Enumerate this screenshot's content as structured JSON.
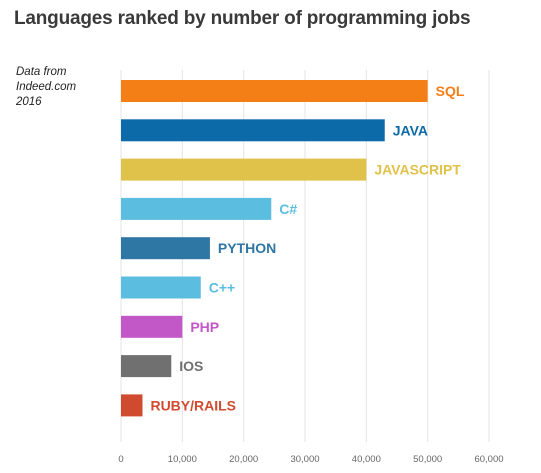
{
  "title": "Languages ranked by number of programming jobs",
  "source_note": [
    "Data from",
    "Indeed.com",
    "2016"
  ],
  "chart_data": {
    "type": "bar",
    "orientation": "horizontal",
    "title": "Languages ranked by number of programming jobs",
    "xlabel": "",
    "ylabel": "",
    "xlim": [
      0,
      60000
    ],
    "x_ticks": [
      0,
      10000,
      20000,
      30000,
      40000,
      50000,
      60000
    ],
    "x_tick_labels": [
      "0",
      "10,000",
      "20,000",
      "30,000",
      "40,000",
      "50,000",
      "60,000"
    ],
    "grid": true,
    "legend": "none",
    "categories": [
      "SQL",
      "JAVA",
      "JAVASCRIPT",
      "C#",
      "PYTHON",
      "C++",
      "PHP",
      "IOS",
      "RUBY/RAILS"
    ],
    "values": [
      50000,
      43000,
      40000,
      24500,
      14500,
      13000,
      10000,
      8200,
      3500
    ],
    "colors": [
      "#f57f17",
      "#0d6aa8",
      "#e0c24a",
      "#5bbde0",
      "#2e76a3",
      "#5bbde0",
      "#c257c8",
      "#707070",
      "#d04a2f"
    ]
  }
}
